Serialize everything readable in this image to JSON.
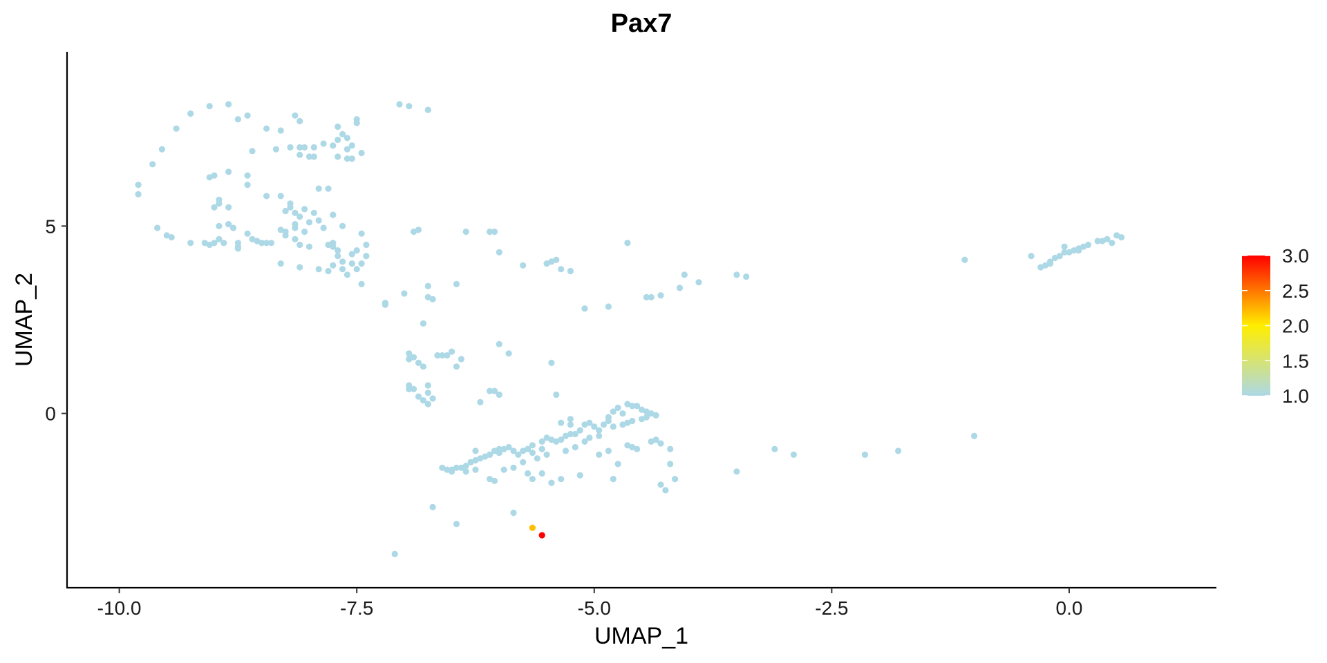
{
  "chart_data": {
    "type": "scatter",
    "title": "Pax7",
    "xlabel": "UMAP_1",
    "ylabel": "UMAP_2",
    "xlim": [
      -10.55,
      1.55
    ],
    "ylim": [
      -4.65,
      9.65
    ],
    "x_ticks": [
      -10.0,
      -7.5,
      -5.0,
      -2.5,
      0.0
    ],
    "x_tick_labels": [
      "-10.0",
      "-7.5",
      "-5.0",
      "-2.5",
      "0.0"
    ],
    "y_ticks": [
      0,
      5
    ],
    "y_tick_labels": [
      "0",
      "5"
    ],
    "grid": false,
    "color_scale": {
      "min": 1.0,
      "max": 3.0,
      "stops": [
        "#add8e6",
        "#ffee00",
        "#ff0000"
      ],
      "ticks": [
        1.0,
        1.5,
        2.0,
        2.5,
        3.0
      ],
      "tick_labels": [
        "1.0",
        "1.5",
        "2.0",
        "2.5",
        "3.0"
      ],
      "legend_position": "right"
    },
    "points": [
      [
        -9.8,
        6.1,
        1
      ],
      [
        -9.8,
        5.85,
        1
      ],
      [
        -9.65,
        6.65,
        1
      ],
      [
        -9.55,
        7.05,
        1
      ],
      [
        -9.25,
        8.0,
        1
      ],
      [
        -9.4,
        7.6,
        1
      ],
      [
        -9.05,
        8.2,
        1
      ],
      [
        -8.85,
        8.25,
        1
      ],
      [
        -8.75,
        7.85,
        1
      ],
      [
        -8.65,
        7.95,
        1
      ],
      [
        -8.45,
        7.6,
        1
      ],
      [
        -8.3,
        7.55,
        1
      ],
      [
        -8.15,
        7.95,
        1
      ],
      [
        -8.1,
        7.8,
        1
      ],
      [
        -7.7,
        7.65,
        1
      ],
      [
        -7.5,
        7.85,
        1
      ],
      [
        -7.5,
        7.75,
        1
      ],
      [
        -7.6,
        7.35,
        1
      ],
      [
        -7.65,
        7.45,
        1
      ],
      [
        -7.7,
        7.3,
        1
      ],
      [
        -7.75,
        7.15,
        1
      ],
      [
        -7.55,
        7.15,
        1
      ],
      [
        -7.6,
        7.05,
        1
      ],
      [
        -7.85,
        7.2,
        1
      ],
      [
        -7.95,
        7.1,
        1
      ],
      [
        -8.05,
        7.1,
        1
      ],
      [
        -8.1,
        7.1,
        1
      ],
      [
        -8.2,
        7.1,
        1
      ],
      [
        -8.35,
        7.05,
        1
      ],
      [
        -7.45,
        6.95,
        1
      ],
      [
        -8.6,
        7.0,
        1
      ],
      [
        -7.7,
        6.85,
        1
      ],
      [
        -7.6,
        6.8,
        1
      ],
      [
        -7.55,
        6.8,
        1
      ],
      [
        -7.95,
        6.85,
        1
      ],
      [
        -8.0,
        6.85,
        1
      ],
      [
        -8.1,
        6.9,
        1
      ],
      [
        -9.0,
        6.35,
        1
      ],
      [
        -9.05,
        6.3,
        1
      ],
      [
        -8.85,
        6.45,
        1
      ],
      [
        -8.65,
        6.35,
        1
      ],
      [
        -8.65,
        6.1,
        1
      ],
      [
        -7.9,
        6.0,
        1
      ],
      [
        -7.8,
        6.0,
        1
      ],
      [
        -8.45,
        5.8,
        1
      ],
      [
        -8.3,
        5.8,
        1
      ],
      [
        -8.2,
        5.6,
        1
      ],
      [
        -8.2,
        5.5,
        1
      ],
      [
        -8.05,
        5.45,
        1
      ],
      [
        -8.1,
        5.25,
        1
      ],
      [
        -7.95,
        5.35,
        1
      ],
      [
        -7.75,
        5.3,
        1
      ],
      [
        -8.15,
        5.35,
        1
      ],
      [
        -8.25,
        5.4,
        1
      ],
      [
        -7.9,
        5.15,
        1
      ],
      [
        -8.0,
        5.1,
        1
      ],
      [
        -8.15,
        5.05,
        1
      ],
      [
        -8.15,
        4.95,
        1
      ],
      [
        -8.25,
        4.85,
        1
      ],
      [
        -8.05,
        4.85,
        1
      ],
      [
        -7.85,
        4.95,
        1
      ],
      [
        -7.65,
        5.0,
        1
      ],
      [
        -7.45,
        4.8,
        1
      ],
      [
        -8.95,
        5.7,
        1
      ],
      [
        -8.95,
        5.6,
        1
      ],
      [
        -9.0,
        5.5,
        1
      ],
      [
        -8.85,
        5.5,
        1
      ],
      [
        -8.95,
        5.0,
        1
      ],
      [
        -8.85,
        5.05,
        1
      ],
      [
        -8.8,
        4.95,
        1
      ],
      [
        -8.95,
        4.65,
        1
      ],
      [
        -8.9,
        4.55,
        1
      ],
      [
        -9.0,
        4.55,
        1
      ],
      [
        -9.05,
        4.5,
        1
      ],
      [
        -9.1,
        4.55,
        1
      ],
      [
        -9.25,
        4.55,
        1
      ],
      [
        -9.45,
        4.7,
        1
      ],
      [
        -9.5,
        4.75,
        1
      ],
      [
        -9.6,
        4.95,
        1
      ],
      [
        -8.75,
        4.55,
        1
      ],
      [
        -8.75,
        4.4,
        1
      ],
      [
        -8.75,
        4.45,
        1
      ],
      [
        -8.65,
        4.8,
        1
      ],
      [
        -8.6,
        4.65,
        1
      ],
      [
        -8.55,
        4.6,
        1
      ],
      [
        -8.5,
        4.55,
        1
      ],
      [
        -8.45,
        4.55,
        1
      ],
      [
        -8.4,
        4.55,
        1
      ],
      [
        -8.3,
        4.9,
        1
      ],
      [
        -8.25,
        4.75,
        1
      ],
      [
        -8.15,
        4.65,
        1
      ],
      [
        -8.1,
        4.5,
        1
      ],
      [
        -8.0,
        4.45,
        1
      ],
      [
        -7.8,
        4.5,
        1
      ],
      [
        -7.75,
        4.45,
        1
      ],
      [
        -7.75,
        4.55,
        1
      ],
      [
        -7.7,
        4.35,
        1
      ],
      [
        -7.7,
        4.2,
        1
      ],
      [
        -7.55,
        4.25,
        1
      ],
      [
        -7.5,
        4.35,
        1
      ],
      [
        -7.4,
        4.5,
        1
      ],
      [
        -7.4,
        4.2,
        1
      ],
      [
        -7.45,
        4.0,
        1
      ],
      [
        -7.55,
        4.0,
        1
      ],
      [
        -7.65,
        4.05,
        1
      ],
      [
        -7.75,
        3.95,
        1
      ],
      [
        -7.8,
        3.8,
        1
      ],
      [
        -7.9,
        3.85,
        1
      ],
      [
        -8.1,
        3.9,
        1
      ],
      [
        -8.3,
        4.0,
        1
      ],
      [
        -7.5,
        3.85,
        1
      ],
      [
        -7.6,
        3.7,
        1
      ],
      [
        -7.65,
        3.85,
        1
      ],
      [
        -7.45,
        3.45,
        1
      ],
      [
        -7.2,
        2.95,
        1
      ],
      [
        -7.2,
        2.9,
        1
      ],
      [
        -7.05,
        8.25,
        1
      ],
      [
        -6.95,
        8.2,
        1
      ],
      [
        -6.75,
        8.1,
        1
      ],
      [
        -6.9,
        4.85,
        1
      ],
      [
        -6.85,
        4.9,
        1
      ],
      [
        -6.35,
        4.85,
        1
      ],
      [
        -6.1,
        4.85,
        1
      ],
      [
        -6.05,
        4.85,
        1
      ],
      [
        -6.0,
        4.3,
        1
      ],
      [
        -5.75,
        3.95,
        1
      ],
      [
        -5.5,
        4.0,
        1
      ],
      [
        -5.45,
        4.05,
        1
      ],
      [
        -5.4,
        4.1,
        1
      ],
      [
        -5.35,
        3.85,
        1
      ],
      [
        -5.25,
        3.8,
        1
      ],
      [
        -4.65,
        4.55,
        1
      ],
      [
        -6.75,
        3.4,
        1
      ],
      [
        -6.75,
        3.1,
        1
      ],
      [
        -6.7,
        3.05,
        1
      ],
      [
        -6.45,
        3.45,
        1
      ],
      [
        -7.0,
        3.2,
        1
      ],
      [
        -6.8,
        2.4,
        1
      ],
      [
        -6.95,
        1.6,
        1
      ],
      [
        -6.9,
        1.5,
        1
      ],
      [
        -6.95,
        1.45,
        1
      ],
      [
        -6.85,
        1.35,
        1
      ],
      [
        -6.8,
        1.25,
        1
      ],
      [
        -6.65,
        1.55,
        1
      ],
      [
        -6.6,
        1.55,
        1
      ],
      [
        -6.55,
        1.55,
        1
      ],
      [
        -6.5,
        1.65,
        1
      ],
      [
        -6.4,
        1.45,
        1
      ],
      [
        -6.45,
        1.25,
        1
      ],
      [
        -6.0,
        1.85,
        1
      ],
      [
        -5.9,
        1.6,
        1
      ],
      [
        -5.45,
        1.35,
        1
      ],
      [
        -6.95,
        0.75,
        1
      ],
      [
        -6.95,
        0.65,
        1
      ],
      [
        -6.9,
        0.65,
        1
      ],
      [
        -6.85,
        0.45,
        1
      ],
      [
        -6.8,
        0.35,
        1
      ],
      [
        -6.75,
        0.25,
        1
      ],
      [
        -6.75,
        0.55,
        1
      ],
      [
        -6.7,
        0.4,
        1
      ],
      [
        -6.75,
        0.75,
        1
      ],
      [
        -6.2,
        0.3,
        1
      ],
      [
        -6.1,
        0.6,
        1
      ],
      [
        -6.05,
        0.6,
        1
      ],
      [
        -6.0,
        0.5,
        1
      ],
      [
        -5.4,
        0.5,
        1
      ],
      [
        -5.1,
        2.8,
        1
      ],
      [
        -4.85,
        2.85,
        1
      ],
      [
        -4.45,
        3.1,
        1
      ],
      [
        -4.4,
        3.1,
        1
      ],
      [
        -4.3,
        3.15,
        1
      ],
      [
        -4.1,
        3.35,
        1
      ],
      [
        -4.05,
        3.7,
        1
      ],
      [
        -3.9,
        3.5,
        1
      ],
      [
        -3.5,
        3.7,
        1
      ],
      [
        -3.4,
        3.65,
        1
      ],
      [
        -4.8,
        0.05,
        1
      ],
      [
        -4.85,
        -0.1,
        1
      ],
      [
        -4.85,
        -0.2,
        1
      ],
      [
        -4.8,
        -0.35,
        1
      ],
      [
        -4.75,
        0.15,
        1
      ],
      [
        -4.7,
        0.0,
        1
      ],
      [
        -4.65,
        0.25,
        1
      ],
      [
        -4.6,
        0.2,
        1
      ],
      [
        -4.55,
        0.2,
        1
      ],
      [
        -4.5,
        0.1,
        1
      ],
      [
        -4.45,
        0.05,
        1
      ],
      [
        -4.4,
        0.0,
        1
      ],
      [
        -4.35,
        -0.05,
        1
      ],
      [
        -4.45,
        -0.1,
        1
      ],
      [
        -4.5,
        -0.15,
        1
      ],
      [
        -4.6,
        -0.2,
        1
      ],
      [
        -4.65,
        -0.25,
        1
      ],
      [
        -4.7,
        -0.3,
        1
      ],
      [
        -4.9,
        -0.3,
        1
      ],
      [
        -4.95,
        -0.45,
        1
      ],
      [
        -5.0,
        -0.35,
        1
      ],
      [
        -5.05,
        -0.25,
        1
      ],
      [
        -5.1,
        -0.3,
        1
      ],
      [
        -5.15,
        -0.45,
        1
      ],
      [
        -5.2,
        -0.55,
        1
      ],
      [
        -5.25,
        -0.55,
        1
      ],
      [
        -5.3,
        -0.6,
        1
      ],
      [
        -5.35,
        -0.7,
        1
      ],
      [
        -5.4,
        -0.75,
        1
      ],
      [
        -5.45,
        -0.7,
        1
      ],
      [
        -5.5,
        -0.65,
        1
      ],
      [
        -5.55,
        -0.75,
        1
      ],
      [
        -5.65,
        -0.85,
        1
      ],
      [
        -5.7,
        -0.95,
        1
      ],
      [
        -5.75,
        -1.0,
        1
      ],
      [
        -5.8,
        -1.1,
        1
      ],
      [
        -5.85,
        -1.0,
        1
      ],
      [
        -5.9,
        -0.9,
        1
      ],
      [
        -5.95,
        -0.95,
        1
      ],
      [
        -6.0,
        -1.05,
        1
      ],
      [
        -6.05,
        -1.0,
        1
      ],
      [
        -6.1,
        -1.1,
        1
      ],
      [
        -6.15,
        -1.15,
        1
      ],
      [
        -6.2,
        -1.2,
        1
      ],
      [
        -6.25,
        -1.25,
        1
      ],
      [
        -6.3,
        -1.3,
        1
      ],
      [
        -6.35,
        -1.4,
        1
      ],
      [
        -6.4,
        -1.45,
        1
      ],
      [
        -6.45,
        -1.45,
        1
      ],
      [
        -6.5,
        -1.5,
        1
      ],
      [
        -6.55,
        -1.5,
        1
      ],
      [
        -6.6,
        -1.45,
        1
      ],
      [
        -6.5,
        -1.55,
        1
      ],
      [
        -6.35,
        -1.55,
        1
      ],
      [
        -6.25,
        -1.5,
        1
      ],
      [
        -6.1,
        -1.75,
        1
      ],
      [
        -6.05,
        -1.8,
        1
      ],
      [
        -5.95,
        -1.5,
        1
      ],
      [
        -5.85,
        -1.45,
        1
      ],
      [
        -5.75,
        -1.3,
        1
      ],
      [
        -5.7,
        -1.6,
        1
      ],
      [
        -5.65,
        -1.75,
        1
      ],
      [
        -5.55,
        -1.6,
        1
      ],
      [
        -5.45,
        -1.85,
        1
      ],
      [
        -5.35,
        -1.75,
        1
      ],
      [
        -5.15,
        -1.65,
        1
      ],
      [
        -4.95,
        -1.1,
        1
      ],
      [
        -4.85,
        -1.0,
        1
      ],
      [
        -4.75,
        -1.35,
        1
      ],
      [
        -4.65,
        -0.85,
        1
      ],
      [
        -4.6,
        -0.9,
        1
      ],
      [
        -4.55,
        -0.95,
        1
      ],
      [
        -4.8,
        -1.75,
        1
      ],
      [
        -4.4,
        -0.75,
        1
      ],
      [
        -4.35,
        -0.7,
        1
      ],
      [
        -4.3,
        -0.8,
        1
      ],
      [
        -4.2,
        -0.95,
        1
      ],
      [
        -4.3,
        -1.9,
        1
      ],
      [
        -4.25,
        -2.05,
        1
      ],
      [
        -4.15,
        -1.75,
        1
      ],
      [
        -4.2,
        -1.35,
        1
      ],
      [
        -6.1,
        -1.1,
        1
      ],
      [
        -6.0,
        -0.95,
        1
      ],
      [
        -5.65,
        -1.05,
        1
      ],
      [
        -5.55,
        -0.95,
        1
      ],
      [
        -5.5,
        -1.1,
        1
      ],
      [
        -5.6,
        -1.2,
        1
      ],
      [
        -5.3,
        -1.0,
        1
      ],
      [
        -5.2,
        -0.9,
        1
      ],
      [
        -5.1,
        -0.75,
        1
      ],
      [
        -5.05,
        -0.65,
        1
      ],
      [
        -4.95,
        -0.6,
        1
      ],
      [
        -5.25,
        -0.3,
        1
      ],
      [
        -5.35,
        -0.25,
        1
      ],
      [
        -5.25,
        -0.15,
        1
      ],
      [
        -6.25,
        -1.0,
        1
      ],
      [
        -6.7,
        -2.5,
        1
      ],
      [
        -6.45,
        -2.95,
        1
      ],
      [
        -5.85,
        -2.65,
        1
      ],
      [
        -7.1,
        -3.75,
        1
      ],
      [
        -3.5,
        -1.55,
        1
      ],
      [
        -3.1,
        -0.95,
        1
      ],
      [
        -2.9,
        -1.1,
        1
      ],
      [
        -2.15,
        -1.1,
        1
      ],
      [
        -1.8,
        -1.0,
        1
      ],
      [
        -1.0,
        -0.6,
        1
      ],
      [
        -1.1,
        4.1,
        1
      ],
      [
        -0.4,
        4.2,
        1
      ],
      [
        -0.3,
        3.9,
        1
      ],
      [
        -0.25,
        3.95,
        1
      ],
      [
        -0.2,
        4.05,
        1
      ],
      [
        -0.15,
        4.15,
        1
      ],
      [
        -0.1,
        4.2,
        1
      ],
      [
        -0.05,
        4.3,
        1
      ],
      [
        0.0,
        4.3,
        1
      ],
      [
        0.05,
        4.35,
        1
      ],
      [
        0.1,
        4.35,
        1
      ],
      [
        0.15,
        4.45,
        1
      ],
      [
        0.2,
        4.5,
        1
      ],
      [
        0.3,
        4.6,
        1
      ],
      [
        0.4,
        4.65,
        1
      ],
      [
        0.5,
        4.75,
        1
      ],
      [
        0.55,
        4.7,
        1
      ],
      [
        -0.2,
        4.0,
        1
      ],
      [
        -0.05,
        4.45,
        1
      ],
      [
        0.35,
        4.6,
        1
      ],
      [
        0.1,
        4.4,
        1
      ],
      [
        0.45,
        4.55,
        1
      ],
      [
        -5.65,
        -3.05,
        2.2
      ],
      [
        -5.55,
        -3.25,
        3.0
      ]
    ]
  }
}
